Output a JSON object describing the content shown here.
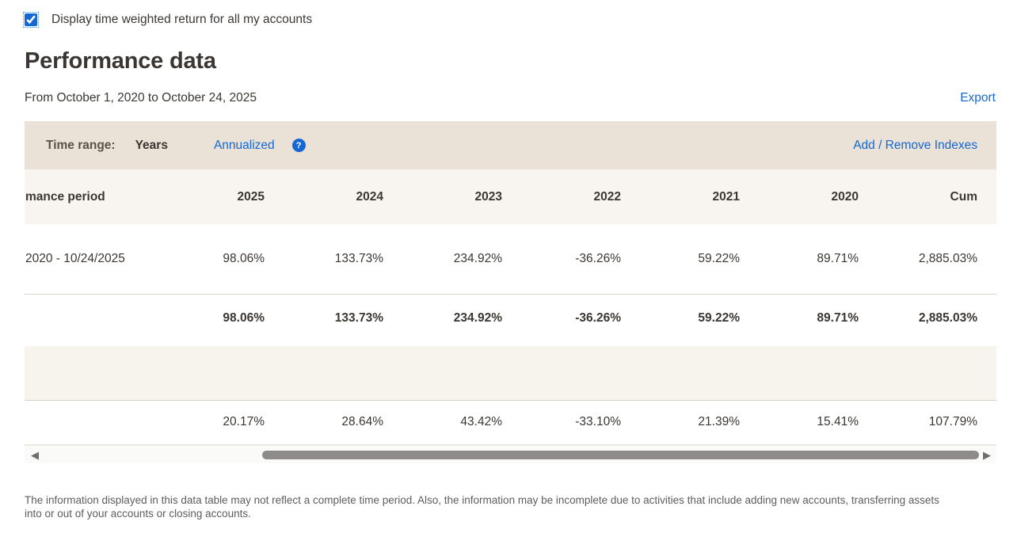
{
  "display_toggle": {
    "label": "Display time weighted return for all my accounts",
    "checked_attr": "checked"
  },
  "header": {
    "title": "Performance data",
    "date_range": "From October 1, 2020 to October 24, 2025",
    "export_label": "Export"
  },
  "controls": {
    "time_range_label": "Time range:",
    "time_range_value": "Years",
    "annualized_link": "Annualized",
    "help_icon_glyph": "?",
    "add_remove_indexes_link": "Add / Remove Indexes"
  },
  "table": {
    "first_column_header": "mance period",
    "year_columns": [
      "2025",
      "2024",
      "2023",
      "2022",
      "2021",
      "2020",
      "Cum"
    ],
    "rows": [
      {
        "period": "2020 - 10/24/2025",
        "values": [
          "98.06%",
          "133.73%",
          "234.92%",
          "-36.26%",
          "59.22%",
          "89.71%",
          "2,885.03%"
        ]
      },
      {
        "period": "",
        "emphasis": "bold",
        "values": [
          "98.06%",
          "133.73%",
          "234.92%",
          "-36.26%",
          "59.22%",
          "89.71%",
          "2,885.03%"
        ]
      },
      {
        "period": "",
        "values": [
          "20.17%",
          "28.64%",
          "43.42%",
          "-33.10%",
          "21.39%",
          "15.41%",
          "107.79%"
        ]
      }
    ]
  },
  "scrollbar": {
    "left_arrow": "◀",
    "right_arrow": "▶"
  },
  "footer": {
    "disclaimer": "The information displayed in this data table may not reflect a complete time period. Also, the information may be incomplete due to activities that include adding new accounts, transferring assets into or out of your accounts or closing accounts."
  },
  "colors": {
    "link_blue": "#1568d3",
    "control_bar_beige": "#eae1d7",
    "header_row_beige": "#f8f5f0"
  }
}
